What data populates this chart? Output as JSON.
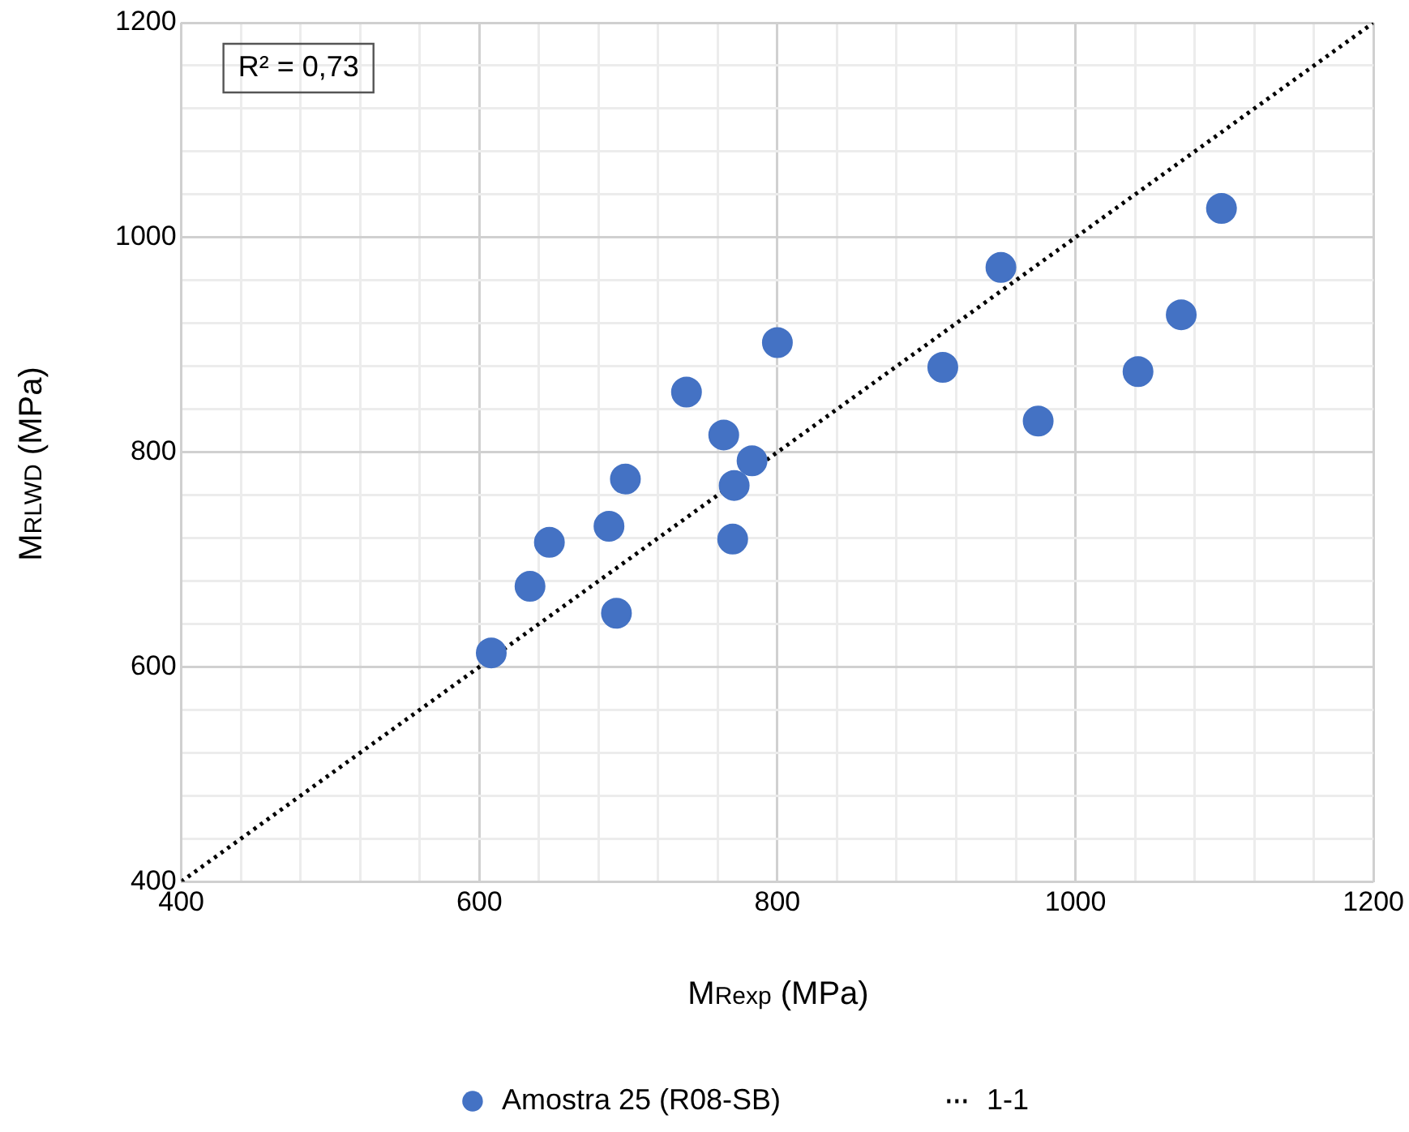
{
  "chart_data": {
    "type": "scatter",
    "xlabel": "M$_{Rexp}$ (MPa)",
    "ylabel": "M$_{RLWD}$ (MPa)",
    "annotations": [
      "R² = 0,73"
    ],
    "x": [
      608,
      634,
      647,
      687,
      692,
      698,
      739,
      764,
      770,
      771,
      783,
      800,
      911,
      950,
      975,
      1042,
      1071,
      1098
    ],
    "series": [
      {
        "name": "Amostra 25 (R08-SB)",
        "color": "#4472c4",
        "values": [
          613,
          675,
          716,
          731,
          650,
          775,
          856,
          816,
          719,
          769,
          792,
          902,
          879,
          972,
          829,
          875,
          928,
          1027
        ],
        "marker": "circle"
      },
      {
        "name": "1-1",
        "type": "line",
        "color": "#000000",
        "x": [
          400,
          1200
        ],
        "values": [
          400,
          1200
        ],
        "line_style": "dotted",
        "marker": "none"
      }
    ],
    "xlim": [
      400,
      1200
    ],
    "ylim": [
      400,
      1200
    ],
    "xticks": [
      400,
      {
        "value": 440,
        "label": null
      },
      {
        "value": 480,
        "label": null
      },
      {
        "value": 520,
        "label": null
      },
      {
        "value": 560,
        "label": null
      },
      600,
      {
        "value": 640,
        "label": null
      },
      {
        "value": 680,
        "label": null
      },
      {
        "value": 720,
        "label": null
      },
      {
        "value": 760,
        "label": null
      },
      800,
      {
        "value": 840,
        "label": null
      },
      {
        "value": 880,
        "label": null
      },
      {
        "value": 920,
        "label": null
      },
      {
        "value": 960,
        "label": null
      },
      1000,
      {
        "value": 1040,
        "label": null
      },
      {
        "value": 1080,
        "label": null
      },
      {
        "value": 1120,
        "label": null
      },
      {
        "value": 1160,
        "label": null
      },
      1200
    ],
    "yticks": [
      400,
      {
        "value": 440,
        "label": null
      },
      {
        "value": 480,
        "label": null
      },
      {
        "value": 520,
        "label": null
      },
      {
        "value": 560,
        "label": null
      },
      600,
      {
        "value": 640,
        "label": null
      },
      {
        "value": 680,
        "label": null
      },
      {
        "value": 720,
        "label": null
      },
      {
        "value": 760,
        "label": null
      },
      800,
      {
        "value": 840,
        "label": null
      },
      {
        "value": 880,
        "label": null
      },
      {
        "value": 920,
        "label": null
      },
      {
        "value": 960,
        "label": null
      },
      1000,
      {
        "value": 1040,
        "label": null
      },
      {
        "value": 1080,
        "label": null
      },
      {
        "value": 1120,
        "label": null
      },
      {
        "value": 1160,
        "label": null
      },
      1200
    ],
    "grid": true,
    "legend": "bottom"
  }
}
